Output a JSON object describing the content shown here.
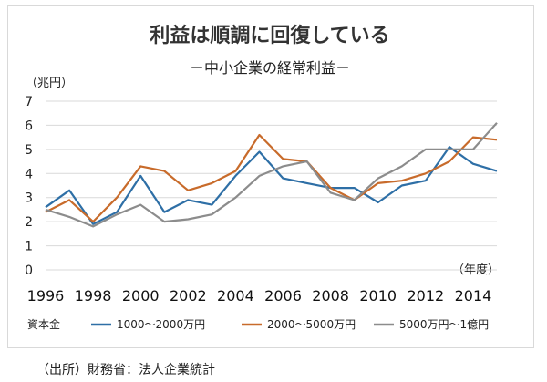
{
  "chart_data": {
    "type": "line",
    "title": "利益は順調に回復している",
    "subtitle": "－中小企業の経常利益－",
    "ylabel": "（兆円）",
    "xlabel": "（年度）",
    "legend_title": "資本金",
    "ylim": [
      0,
      7
    ],
    "yticks": [
      0,
      1,
      2,
      3,
      4,
      5,
      6,
      7
    ],
    "xlim": [
      1996,
      2015
    ],
    "xticks": [
      "1996",
      "1998",
      "2000",
      "2002",
      "2004",
      "2006",
      "2008",
      "2010",
      "2012",
      "2014"
    ],
    "grid": true,
    "legend_position": "bottom",
    "x": [
      1996,
      1997,
      1998,
      1999,
      2000,
      2001,
      2002,
      2003,
      2004,
      2005,
      2006,
      2007,
      2008,
      2009,
      2010,
      2011,
      2012,
      2013,
      2014,
      2015
    ],
    "series": [
      {
        "name": "1000～2000万円",
        "color": "#2e6fa6",
        "values": [
          2.6,
          3.3,
          1.9,
          2.4,
          3.9,
          2.4,
          2.9,
          2.7,
          3.9,
          4.9,
          3.8,
          3.6,
          3.4,
          3.4,
          2.8,
          3.5,
          3.7,
          5.1,
          4.4,
          4.1
        ]
      },
      {
        "name": "2000～5000万円",
        "color": "#c86b2b",
        "values": [
          2.4,
          2.9,
          2.0,
          3.0,
          4.3,
          4.1,
          3.3,
          3.6,
          4.1,
          5.6,
          4.6,
          4.5,
          3.4,
          2.9,
          3.6,
          3.7,
          4.0,
          4.5,
          5.5,
          5.4
        ]
      },
      {
        "name": "5000万円～1億円",
        "color": "#8c8c8c",
        "values": [
          2.5,
          2.2,
          1.8,
          2.3,
          2.7,
          2.0,
          2.1,
          2.3,
          3.0,
          3.9,
          4.3,
          4.5,
          3.2,
          2.9,
          3.8,
          4.3,
          5.0,
          5.0,
          5.0,
          6.1
        ]
      }
    ]
  },
  "source": "（出所）財務省：法人企業統計"
}
